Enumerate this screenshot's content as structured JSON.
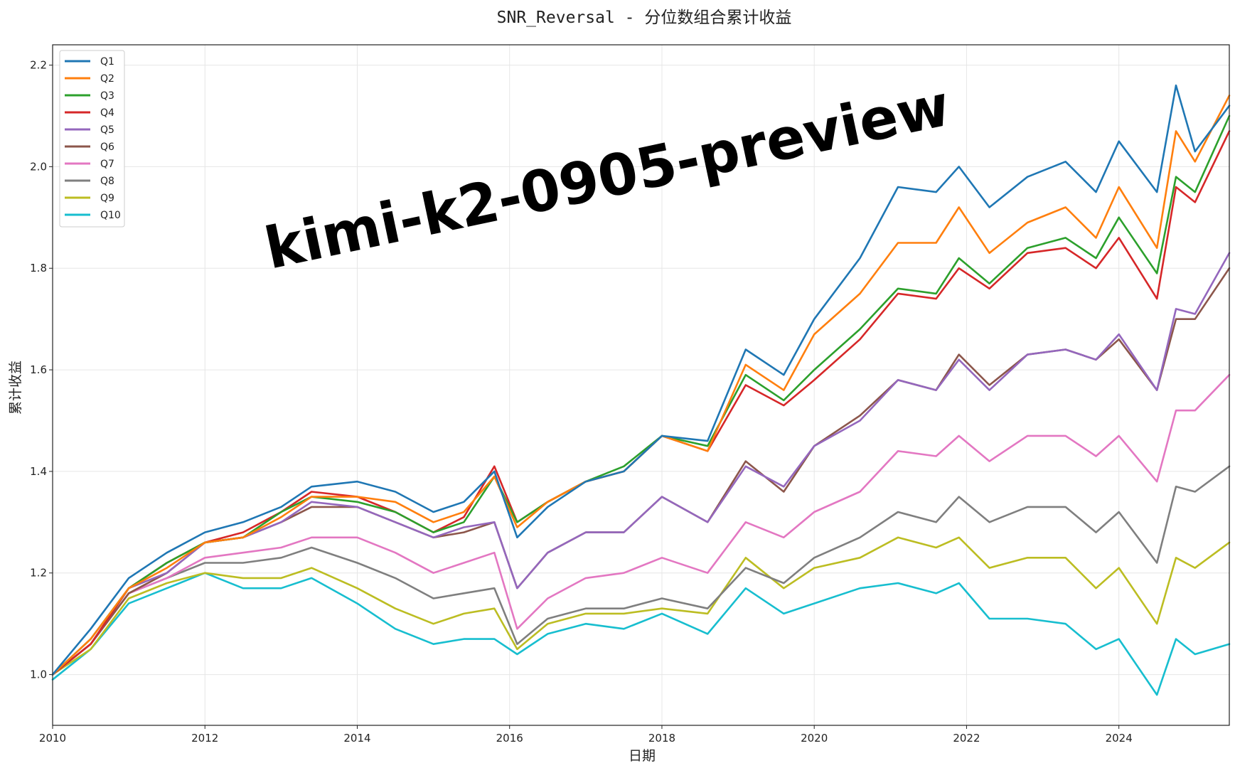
{
  "chart_data": {
    "type": "line",
    "title": "SNR_Reversal - 分位数组合累计收益",
    "xlabel": "日期",
    "ylabel": "累计收益",
    "xlim": [
      2010.0,
      2025.45
    ],
    "ylim": [
      0.9,
      2.24
    ],
    "x_ticks": [
      "2010",
      "2012",
      "2014",
      "2016",
      "2018",
      "2020",
      "2022",
      "2024"
    ],
    "y_ticks": [
      "1.0",
      "1.2",
      "1.4",
      "1.6",
      "1.8",
      "2.0",
      "2.2"
    ],
    "grid": true,
    "legend_position": "top-left",
    "watermark": "kimi-k2-0905-preview",
    "x": [
      2010.0,
      2010.5,
      2011.0,
      2011.5,
      2012.0,
      2012.5,
      2013.0,
      2013.4,
      2014.0,
      2014.5,
      2015.0,
      2015.4,
      2015.8,
      2016.1,
      2016.5,
      2017.0,
      2017.5,
      2018.0,
      2018.6,
      2019.1,
      2019.6,
      2020.0,
      2020.6,
      2021.1,
      2021.6,
      2021.9,
      2022.3,
      2022.8,
      2023.3,
      2023.7,
      2024.0,
      2024.5,
      2024.75,
      2025.0,
      2025.45
    ],
    "series": [
      {
        "name": "Q1",
        "color": "#1f77b4",
        "values": [
          1.0,
          1.09,
          1.19,
          1.24,
          1.28,
          1.3,
          1.33,
          1.37,
          1.38,
          1.36,
          1.32,
          1.34,
          1.4,
          1.27,
          1.33,
          1.38,
          1.4,
          1.47,
          1.46,
          1.64,
          1.59,
          1.7,
          1.82,
          1.96,
          1.95,
          2.0,
          1.92,
          1.98,
          2.01,
          1.95,
          2.05,
          1.95,
          2.16,
          2.03,
          2.12
        ]
      },
      {
        "name": "Q2",
        "color": "#ff7f0e",
        "values": [
          1.0,
          1.07,
          1.17,
          1.21,
          1.26,
          1.27,
          1.31,
          1.35,
          1.35,
          1.34,
          1.3,
          1.32,
          1.39,
          1.29,
          1.34,
          1.38,
          1.4,
          1.47,
          1.44,
          1.61,
          1.56,
          1.67,
          1.75,
          1.85,
          1.85,
          1.92,
          1.83,
          1.89,
          1.92,
          1.86,
          1.96,
          1.84,
          2.07,
          2.01,
          2.14
        ]
      },
      {
        "name": "Q3",
        "color": "#2ca02c",
        "values": [
          1.0,
          1.07,
          1.17,
          1.22,
          1.26,
          1.27,
          1.32,
          1.35,
          1.34,
          1.32,
          1.28,
          1.3,
          1.39,
          1.3,
          1.34,
          1.38,
          1.41,
          1.47,
          1.45,
          1.59,
          1.54,
          1.6,
          1.68,
          1.76,
          1.75,
          1.82,
          1.77,
          1.84,
          1.86,
          1.82,
          1.9,
          1.79,
          1.98,
          1.95,
          2.1
        ]
      },
      {
        "name": "Q4",
        "color": "#d62728",
        "values": [
          1.0,
          1.06,
          1.17,
          1.22,
          1.26,
          1.28,
          1.32,
          1.36,
          1.35,
          1.32,
          1.28,
          1.31,
          1.41,
          1.3,
          1.34,
          1.38,
          1.4,
          1.47,
          1.44,
          1.57,
          1.53,
          1.58,
          1.66,
          1.75,
          1.74,
          1.8,
          1.76,
          1.83,
          1.84,
          1.8,
          1.86,
          1.74,
          1.96,
          1.93,
          2.07
        ]
      },
      {
        "name": "Q5",
        "color": "#9467bd",
        "values": [
          1.0,
          1.06,
          1.17,
          1.2,
          1.26,
          1.27,
          1.3,
          1.34,
          1.33,
          1.3,
          1.27,
          1.29,
          1.3,
          1.17,
          1.24,
          1.28,
          1.28,
          1.35,
          1.3,
          1.41,
          1.37,
          1.45,
          1.5,
          1.58,
          1.56,
          1.62,
          1.56,
          1.63,
          1.64,
          1.62,
          1.67,
          1.56,
          1.72,
          1.71,
          1.83
        ]
      },
      {
        "name": "Q6",
        "color": "#8c564b",
        "values": [
          1.0,
          1.06,
          1.16,
          1.2,
          1.26,
          1.27,
          1.3,
          1.33,
          1.33,
          1.3,
          1.27,
          1.28,
          1.3,
          1.17,
          1.24,
          1.28,
          1.28,
          1.35,
          1.3,
          1.42,
          1.36,
          1.45,
          1.51,
          1.58,
          1.56,
          1.63,
          1.57,
          1.63,
          1.64,
          1.62,
          1.66,
          1.56,
          1.7,
          1.7,
          1.8
        ]
      },
      {
        "name": "Q7",
        "color": "#e377c2",
        "values": [
          1.0,
          1.06,
          1.16,
          1.19,
          1.23,
          1.24,
          1.25,
          1.27,
          1.27,
          1.24,
          1.2,
          1.22,
          1.24,
          1.09,
          1.15,
          1.19,
          1.2,
          1.23,
          1.2,
          1.3,
          1.27,
          1.32,
          1.36,
          1.44,
          1.43,
          1.47,
          1.42,
          1.47,
          1.47,
          1.43,
          1.47,
          1.38,
          1.52,
          1.52,
          1.59
        ]
      },
      {
        "name": "Q8",
        "color": "#7f7f7f",
        "values": [
          1.0,
          1.06,
          1.16,
          1.19,
          1.22,
          1.22,
          1.23,
          1.25,
          1.22,
          1.19,
          1.15,
          1.16,
          1.17,
          1.06,
          1.11,
          1.13,
          1.13,
          1.15,
          1.13,
          1.21,
          1.18,
          1.23,
          1.27,
          1.32,
          1.3,
          1.35,
          1.3,
          1.33,
          1.33,
          1.28,
          1.32,
          1.22,
          1.37,
          1.36,
          1.41
        ]
      },
      {
        "name": "Q9",
        "color": "#bcbd22",
        "values": [
          1.0,
          1.05,
          1.15,
          1.18,
          1.2,
          1.19,
          1.19,
          1.21,
          1.17,
          1.13,
          1.1,
          1.12,
          1.13,
          1.05,
          1.1,
          1.12,
          1.12,
          1.13,
          1.12,
          1.23,
          1.17,
          1.21,
          1.23,
          1.27,
          1.25,
          1.27,
          1.21,
          1.23,
          1.23,
          1.17,
          1.21,
          1.1,
          1.23,
          1.21,
          1.26
        ]
      },
      {
        "name": "Q10",
        "color": "#17becf",
        "values": [
          0.99,
          1.05,
          1.14,
          1.17,
          1.2,
          1.17,
          1.17,
          1.19,
          1.14,
          1.09,
          1.06,
          1.07,
          1.07,
          1.04,
          1.08,
          1.1,
          1.09,
          1.12,
          1.08,
          1.17,
          1.12,
          1.14,
          1.17,
          1.18,
          1.16,
          1.18,
          1.11,
          1.11,
          1.1,
          1.05,
          1.07,
          0.96,
          1.07,
          1.04,
          1.06
        ]
      }
    ]
  }
}
